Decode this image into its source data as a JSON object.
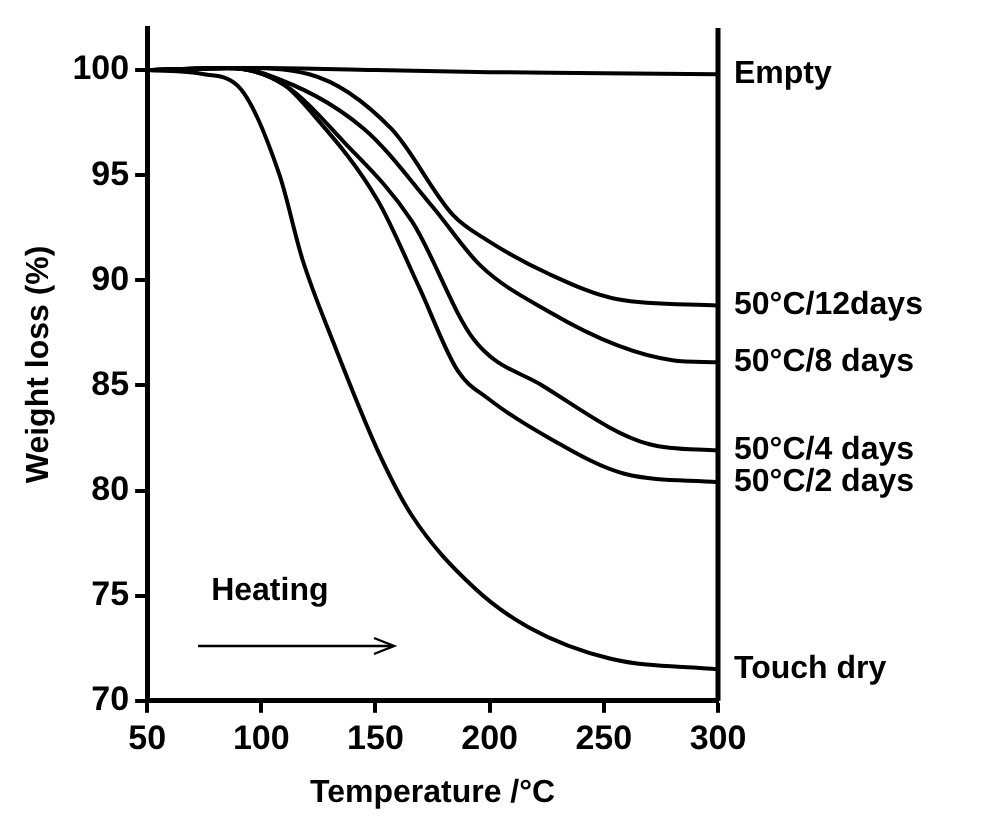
{
  "chart_data": {
    "type": "line",
    "xlabel": "Temperature /°C",
    "ylabel": "Weight loss (%)",
    "xlim": [
      50,
      300
    ],
    "xticks": [
      50,
      100,
      150,
      200,
      250,
      300
    ],
    "ylim": [
      70,
      102
    ],
    "yticks": [
      70,
      75,
      80,
      85,
      90,
      95,
      100
    ],
    "grid": false,
    "legend": false,
    "marker": "none",
    "line_style": "solid",
    "annotations": [
      "Heating"
    ],
    "series": [
      {
        "name": "Empty",
        "color": "#000000",
        "x": [
          50,
          100,
          150,
          200,
          250,
          300
        ],
        "values": [
          100,
          100.1,
          100,
          99.9,
          99.85,
          99.8
        ]
      },
      {
        "name": "50°C/12days",
        "color": "#000000",
        "x": [
          50,
          90,
          121,
          157,
          184,
          199,
          226,
          256,
          300
        ],
        "values": [
          100,
          100.1,
          99.8,
          97.2,
          93.1,
          91.9,
          90.3,
          89.1,
          88.8
        ]
      },
      {
        "name": "50°C/8 days",
        "color": "#000000",
        "x": [
          50,
          85,
          102,
          145,
          175,
          196,
          226,
          256,
          280,
          300
        ],
        "values": [
          100,
          100.1,
          99.8,
          97.2,
          93.5,
          90.7,
          88.5,
          86.9,
          86.2,
          86.1
        ]
      },
      {
        "name": "50°C/4 days",
        "color": "#000000",
        "x": [
          50,
          85,
          110,
          136,
          166,
          193,
          223,
          270,
          300
        ],
        "values": [
          100,
          100.1,
          99.3,
          96.6,
          92.8,
          87.2,
          85,
          82.2,
          81.9
        ]
      },
      {
        "name": "50°C/2 days",
        "color": "#000000",
        "x": [
          50,
          85,
          110,
          121,
          151,
          169,
          186,
          199,
          226,
          259,
          300
        ],
        "values": [
          100,
          100.1,
          99.3,
          98.1,
          93.8,
          89.7,
          85.7,
          84.4,
          82.5,
          80.8,
          80.4
        ]
      },
      {
        "name": "Touch dry",
        "color": "#000000",
        "x": [
          50,
          75,
          91,
          108,
          118,
          131,
          151,
          166,
          193,
          217,
          253,
          300
        ],
        "values": [
          100,
          99.8,
          99.1,
          95,
          91,
          87.2,
          81.9,
          78.8,
          75.4,
          73.5,
          72,
          71.5
        ]
      }
    ]
  }
}
